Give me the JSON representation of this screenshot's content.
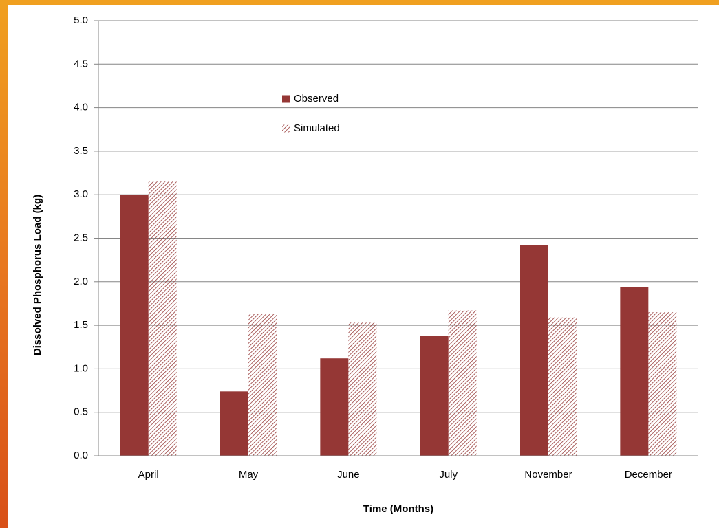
{
  "chart_data": {
    "type": "bar",
    "x_label": "Time (Months)",
    "y_label": "Dissolved Phosphorus Load (kg)",
    "categories": [
      "April",
      "May",
      "June",
      "July",
      "November",
      "December"
    ],
    "series": [
      {
        "name": "Observed",
        "color": "#953735",
        "hatch": false,
        "values": [
          3.0,
          0.74,
          1.12,
          1.38,
          2.42,
          1.94
        ]
      },
      {
        "name": "Simulated",
        "color": "#953735",
        "hatch": true,
        "values": [
          3.15,
          1.63,
          1.53,
          1.67,
          1.59,
          1.65
        ]
      }
    ],
    "ylim": [
      0,
      5
    ],
    "yticks": [
      {
        "value": 0,
        "label": "0.0"
      },
      {
        "value": 0.5,
        "label": "0.5"
      },
      {
        "value": 1,
        "label": "1.0"
      },
      {
        "value": 1.5,
        "label": "1.5"
      },
      {
        "value": 2,
        "label": "2.0"
      },
      {
        "value": 2.5,
        "label": "2.5"
      },
      {
        "value": 3,
        "label": "3.0"
      },
      {
        "value": 3.5,
        "label": "3.5"
      },
      {
        "value": 4,
        "label": "4.0"
      },
      {
        "value": 4.5,
        "label": "4.5"
      },
      {
        "value": 5,
        "label": "5.0"
      }
    ],
    "grid": true,
    "legend": "upper-center"
  }
}
